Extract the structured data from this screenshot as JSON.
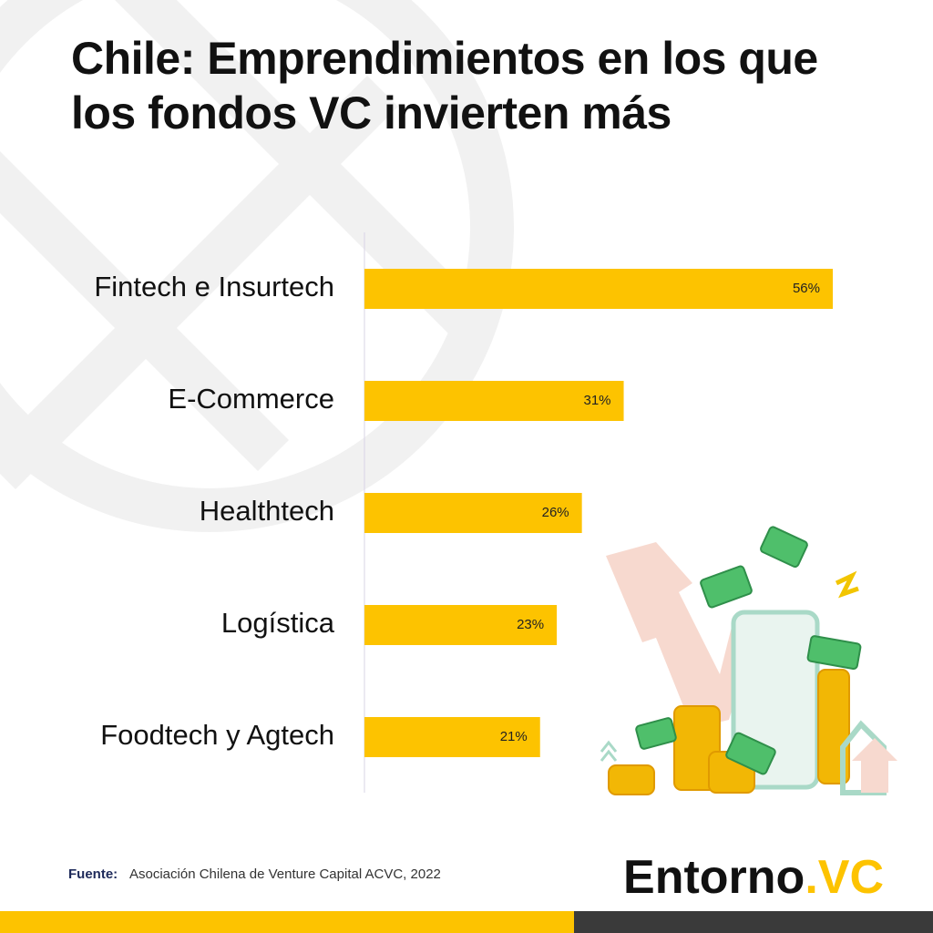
{
  "chart_data": {
    "type": "bar",
    "orientation": "horizontal",
    "title": "Chile: Emprendimientos en los que los fondos VC invierten más",
    "categories": [
      "Fintech e Insurtech",
      "E-Commerce",
      "Healthtech",
      "Logística",
      "Foodtech y Agtech"
    ],
    "values": [
      56,
      31,
      26,
      23,
      21
    ],
    "value_labels": [
      "56%",
      "31%",
      "26%",
      "23%",
      "21%"
    ],
    "color": "#fdc300",
    "source_label": "Fuente:",
    "source": "Asociación Chilena de Venture Capital ACVC, 2022",
    "brand_main": "Entorno",
    "brand_accent": ".VC"
  }
}
